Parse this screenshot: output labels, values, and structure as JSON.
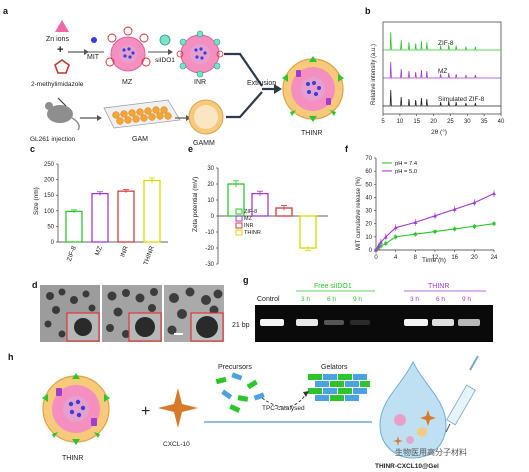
{
  "panels": {
    "a": "a",
    "b": "b",
    "c": "c",
    "d": "d",
    "e": "e",
    "f": "f",
    "g": "g",
    "h": "h"
  },
  "panel_a": {
    "zn_ions": "Zn ions",
    "plus": "+",
    "methylimidazole": "2-methylimidazole",
    "mit": "MIT",
    "mz": "MZ",
    "silido1": "siIDO1",
    "inr": "INR",
    "extrusion": "Extrusion",
    "thinr": "THINR",
    "gl261": "GL261 injection",
    "gam": "GAM",
    "gamm": "GAMM"
  },
  "panel_h": {
    "thinr": "THINR",
    "plus": "+",
    "cxcl10": "CXCL-10",
    "precursors": "Precursors",
    "gelators": "Gelators",
    "tpc": "TPC-catalysed",
    "gel": "THINR-CXCL10@Gel",
    "watermark": "生物医用高分子材料"
  },
  "panel_g": {
    "control": "Control",
    "free": "Free siIDO1",
    "thinr": "THINR",
    "bp": "21 bp",
    "times": [
      "3 h",
      "6 h",
      "9 h"
    ]
  },
  "colors": {
    "green": "#2cc52c",
    "purple": "#a23bd0",
    "dark": "#222222",
    "gray": "#7a7a7a",
    "yellow": "#d8d800",
    "red": "#d23c3c"
  },
  "chart_data": [
    {
      "id": "b",
      "type": "line",
      "xlabel": "2θ (°)",
      "ylabel": "Relative intensity (a.u.)",
      "xlim": [
        5,
        40
      ],
      "xticks": [
        5,
        10,
        15,
        20,
        25,
        30,
        35,
        40
      ],
      "series": [
        {
          "name": "ZIF-8",
          "peaks": [
            7.3,
            10.4,
            12.7,
            14.7,
            16.4,
            18.0,
            22.1,
            24.5,
            26.7,
            29.6,
            32.4
          ]
        },
        {
          "name": "MZ",
          "peaks": [
            7.3,
            10.4,
            12.7,
            14.7,
            16.4,
            18.0,
            22.1,
            24.5,
            26.7,
            29.6,
            32.4
          ]
        },
        {
          "name": "Simulated ZIF-8",
          "peaks": [
            7.3,
            10.4,
            12.7,
            14.7,
            16.4,
            18.0,
            22.1,
            24.5,
            26.7,
            29.6,
            32.4
          ]
        }
      ]
    },
    {
      "id": "c",
      "type": "bar",
      "ylabel": "Size (nm)",
      "ylim": [
        0,
        250
      ],
      "yticks": [
        0,
        50,
        100,
        150,
        200,
        250
      ],
      "categories": [
        "ZIF-8",
        "MZ",
        "INR",
        "THINR"
      ],
      "values": [
        98,
        155,
        163,
        197
      ],
      "errors": [
        5,
        6,
        5,
        8
      ]
    },
    {
      "id": "e",
      "type": "bar",
      "ylabel": "Zeta potential (mV)",
      "ylim": [
        -30,
        30
      ],
      "yticks": [
        -30,
        -20,
        -10,
        0,
        10,
        20,
        30
      ],
      "categories": [
        "ZIF-8",
        "MZ",
        "INR",
        "THINR"
      ],
      "legend": [
        "ZIF-8",
        "MZ",
        "INR",
        "THINR"
      ],
      "values": [
        20,
        14,
        5,
        -20
      ],
      "errors": [
        2,
        1.5,
        1.5,
        1.5
      ]
    },
    {
      "id": "f",
      "type": "line",
      "xlabel": "Time (h)",
      "ylabel": "MIT cumulative release (%)",
      "xlim": [
        0,
        24
      ],
      "ylim": [
        0,
        70
      ],
      "xticks": [
        0,
        4,
        8,
        12,
        16,
        20,
        24
      ],
      "yticks": [
        0,
        10,
        20,
        30,
        40,
        50,
        60,
        70
      ],
      "x": [
        0,
        0.5,
        1,
        2,
        4,
        8,
        12,
        16,
        20,
        24
      ],
      "series": [
        {
          "name": "pH = 7.4",
          "values": [
            0,
            1.5,
            3,
            5,
            10,
            12,
            14,
            16,
            18,
            20
          ]
        },
        {
          "name": "pH = 5.0",
          "values": [
            0,
            3,
            6,
            10,
            17,
            21,
            26,
            31,
            36,
            43
          ]
        }
      ]
    }
  ]
}
